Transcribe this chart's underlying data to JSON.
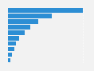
{
  "values": [
    100,
    58,
    40,
    30,
    22,
    15,
    11,
    8,
    5,
    3
  ],
  "bar_color": "#2d8ed4",
  "background_color": "#f2f2f2",
  "grid_color": "#ffffff",
  "bar_height": 0.82
}
